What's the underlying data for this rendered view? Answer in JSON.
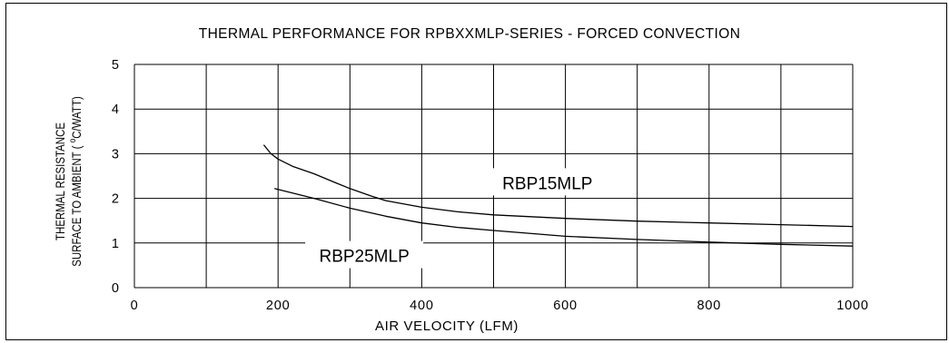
{
  "chart_data": {
    "type": "line",
    "title": "THERMAL PERFORMANCE FOR RPBXXMLP-SERIES - FORCED CONVECTION",
    "xlabel": "AIR VELOCITY (LFM)",
    "ylabel_line1": "THERMAL RESISTANCE",
    "ylabel_line2_prefix": "SURFACE TO AMBIENT ( ",
    "ylabel_line2_sup": "o",
    "ylabel_line2_suffix": "C/WATT)",
    "xlim": [
      0,
      1000
    ],
    "ylim": [
      0,
      5
    ],
    "x_ticks": [
      "0",
      "200",
      "400",
      "600",
      "800",
      "1000"
    ],
    "y_ticks": [
      "0",
      "1",
      "2",
      "3",
      "4",
      "5"
    ],
    "grid": true,
    "grid_x_step": 100,
    "grid_y_step": 1,
    "series": [
      {
        "name": "RBP15MLP",
        "x": [
          180,
          190,
          200,
          220,
          250,
          280,
          300,
          330,
          350,
          400,
          450,
          500,
          600,
          700,
          800,
          900,
          1000
        ],
        "y": [
          3.2,
          3.0,
          2.88,
          2.72,
          2.55,
          2.35,
          2.22,
          2.05,
          1.95,
          1.8,
          1.7,
          1.63,
          1.55,
          1.49,
          1.45,
          1.41,
          1.37
        ]
      },
      {
        "name": "RBP25MLP",
        "x": [
          195,
          250,
          300,
          350,
          400,
          450,
          500,
          600,
          700,
          800,
          900,
          1000
        ],
        "y": [
          2.22,
          2.0,
          1.78,
          1.6,
          1.45,
          1.35,
          1.28,
          1.15,
          1.08,
          1.02,
          0.97,
          0.93
        ]
      }
    ],
    "annotations": [
      {
        "text": "RBP15MLP",
        "x": 575,
        "y": 2.35
      },
      {
        "text": "RBP25MLP",
        "x": 320,
        "y": 0.72
      }
    ],
    "line_color": "#000000"
  }
}
